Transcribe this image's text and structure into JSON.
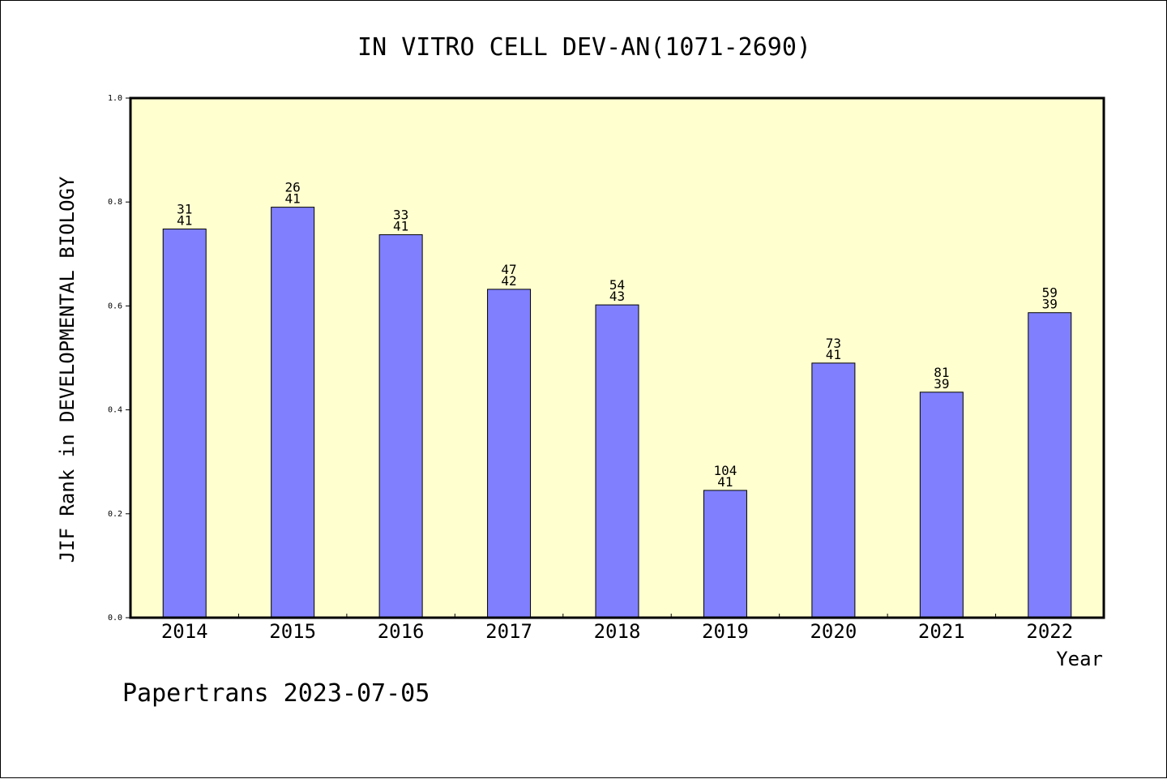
{
  "chart_data": {
    "type": "bar",
    "title": "IN VITRO CELL DEV-AN(1071-2690)",
    "xlabel": "Year",
    "ylabel": "JIF Rank in DEVELOPMENTAL BIOLOGY",
    "ylim": [
      0,
      1.0
    ],
    "yticks": [
      "0.0",
      "0.2",
      "0.4",
      "0.6",
      "0.8",
      "1.0"
    ],
    "grid": false,
    "categories": [
      "2014",
      "2015",
      "2016",
      "2017",
      "2018",
      "2019",
      "2020",
      "2021",
      "2022"
    ],
    "values": [
      0.748,
      0.79,
      0.737,
      0.632,
      0.602,
      0.245,
      0.49,
      0.434,
      0.587
    ],
    "rank_labels": [
      "31",
      "26",
      "33",
      "47",
      "54",
      "104",
      "73",
      "81",
      "59"
    ],
    "total_labels": [
      "41",
      "41",
      "41",
      "42",
      "43",
      "41",
      "41",
      "39",
      "39"
    ],
    "bar_color": "#8080ff",
    "plot_background": "#ffffd0"
  },
  "footer": {
    "credit": "Papertrans 2023-07-05"
  }
}
